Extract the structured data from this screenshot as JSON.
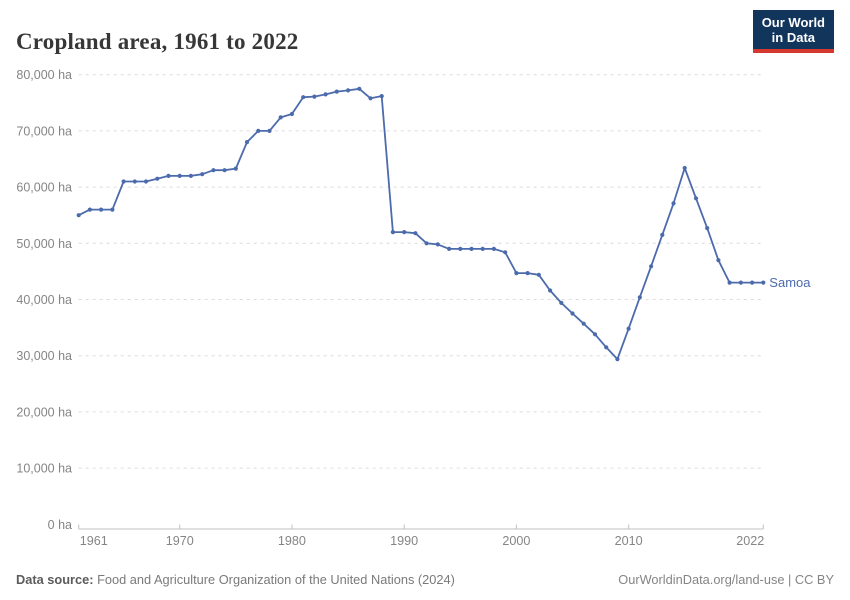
{
  "header": {
    "title": "Cropland area, 1961 to 2022"
  },
  "logo": {
    "lines": [
      "Our World",
      "in Data"
    ],
    "bg_color": "#12355C",
    "accent_color": "#D4382E"
  },
  "footer": {
    "source_label": "Data source:",
    "source_text": " Food and Agriculture Organization of the United Nations (2024)",
    "credit": "OurWorldinData.org/land-use | CC BY"
  },
  "chart_data": {
    "type": "line",
    "title": "Cropland area, 1961 to 2022",
    "series": [
      {
        "name": "Samoa",
        "color": "#4C6BAC",
        "x": [
          1961,
          1962,
          1963,
          1964,
          1965,
          1966,
          1967,
          1968,
          1969,
          1970,
          1971,
          1972,
          1973,
          1974,
          1975,
          1976,
          1977,
          1978,
          1979,
          1980,
          1981,
          1982,
          1983,
          1984,
          1985,
          1986,
          1987,
          1988,
          1989,
          1990,
          1991,
          1992,
          1993,
          1994,
          1995,
          1996,
          1997,
          1998,
          1999,
          2000,
          2001,
          2002,
          2003,
          2004,
          2005,
          2006,
          2007,
          2008,
          2009,
          2010,
          2011,
          2012,
          2013,
          2014,
          2015,
          2016,
          2017,
          2018,
          2019,
          2020,
          2021,
          2022
        ],
        "values": [
          55000,
          56000,
          56000,
          56000,
          61000,
          61000,
          61000,
          61500,
          62000,
          62000,
          62000,
          62300,
          63000,
          63000,
          63300,
          68000,
          70000,
          70000,
          72400,
          73000,
          76000,
          76100,
          76500,
          77000,
          77200,
          77500,
          75800,
          76200,
          52000,
          52000,
          51800,
          50000,
          49800,
          49000,
          49000,
          49000,
          49000,
          49000,
          48400,
          44700,
          44700,
          44400,
          41600,
          39400,
          37500,
          35700,
          33800,
          31500,
          29400,
          34800,
          40400,
          45900,
          51500,
          57100,
          63400,
          58000,
          52700,
          47000,
          43000,
          43000,
          43000,
          43000
        ]
      }
    ],
    "xlabel": "",
    "ylabel": "",
    "unit": "ha",
    "xlim": [
      1961,
      2022
    ],
    "ylim": [
      0,
      80000
    ],
    "grid": "dashed horizontal",
    "legend_position": "end-of-line",
    "y_ticks": [
      {
        "value": 0,
        "label": "0 ha"
      },
      {
        "value": 10000,
        "label": "10,000 ha"
      },
      {
        "value": 20000,
        "label": "20,000 ha"
      },
      {
        "value": 30000,
        "label": "30,000 ha"
      },
      {
        "value": 40000,
        "label": "40,000 ha"
      },
      {
        "value": 50000,
        "label": "50,000 ha"
      },
      {
        "value": 60000,
        "label": "60,000 ha"
      },
      {
        "value": 70000,
        "label": "70,000 ha"
      },
      {
        "value": 80000,
        "label": "80,000 ha"
      }
    ],
    "x_ticks": [
      {
        "value": 1961,
        "label": "1961"
      },
      {
        "value": 1970,
        "label": "1970"
      },
      {
        "value": 1980,
        "label": "1980"
      },
      {
        "value": 1990,
        "label": "1990"
      },
      {
        "value": 2000,
        "label": "2000"
      },
      {
        "value": 2010,
        "label": "2010"
      },
      {
        "value": 2022,
        "label": "2022"
      }
    ]
  },
  "style": {
    "gridline_color": "#dcdcdc",
    "axis_color": "#c0c0c0",
    "tick_label_color": "#858585"
  }
}
